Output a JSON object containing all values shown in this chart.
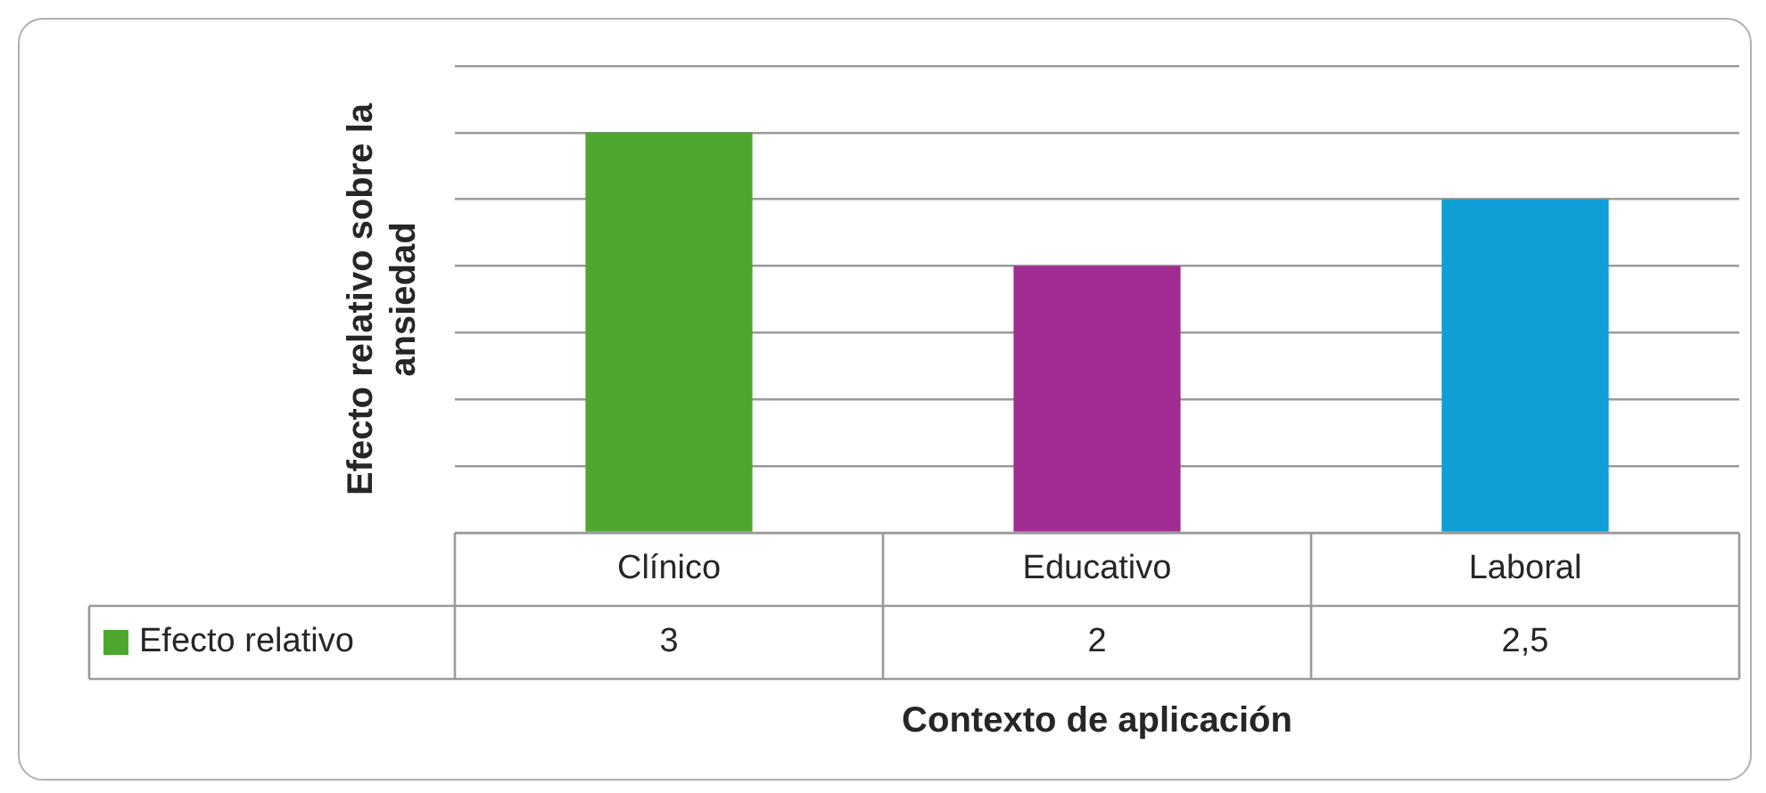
{
  "chart_data": {
    "type": "bar",
    "xlabel": "Contexto de aplicación",
    "ylabel": "Efecto relativo sobre la ansiedad",
    "categories": [
      "Clínico",
      "Educativo",
      "Laboral"
    ],
    "series": [
      {
        "name": "Efecto relativo",
        "color": "#4ea72e",
        "colors": [
          "#4ea72e",
          "#a02b93",
          "#0f9ed5"
        ],
        "values": [
          3,
          2,
          2.5
        ],
        "value_labels": [
          "3",
          "2",
          "2,5"
        ]
      }
    ],
    "ylim": [
      0,
      3.5
    ],
    "yticks": [
      {
        "value": 0,
        "label": null
      },
      {
        "value": 0.5,
        "label": null
      },
      {
        "value": 1,
        "label": null
      },
      {
        "value": 1.5,
        "label": null
      },
      {
        "value": 2,
        "label": null
      },
      {
        "value": 2.5,
        "label": null
      },
      {
        "value": 3,
        "label": null
      },
      {
        "value": 3.5,
        "label": null
      }
    ],
    "grid": "y",
    "tick_labels": "x"
  }
}
